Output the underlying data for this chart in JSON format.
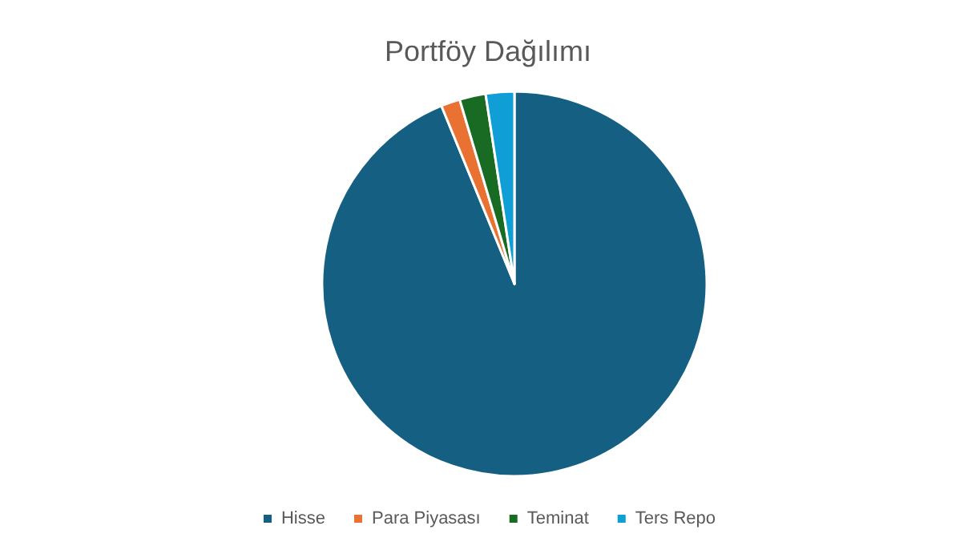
{
  "chart_data": {
    "type": "pie",
    "title": "Portföy Dağılımı",
    "categories": [
      "Hisse",
      "Para Piyasası",
      "Teminat",
      "Ters Repo"
    ],
    "values": [
      93.8,
      1.6,
      2.2,
      2.4
    ],
    "colors": [
      "#156082",
      "#e97132",
      "#196b24",
      "#0f9ed5"
    ],
    "legend": "bottom"
  }
}
